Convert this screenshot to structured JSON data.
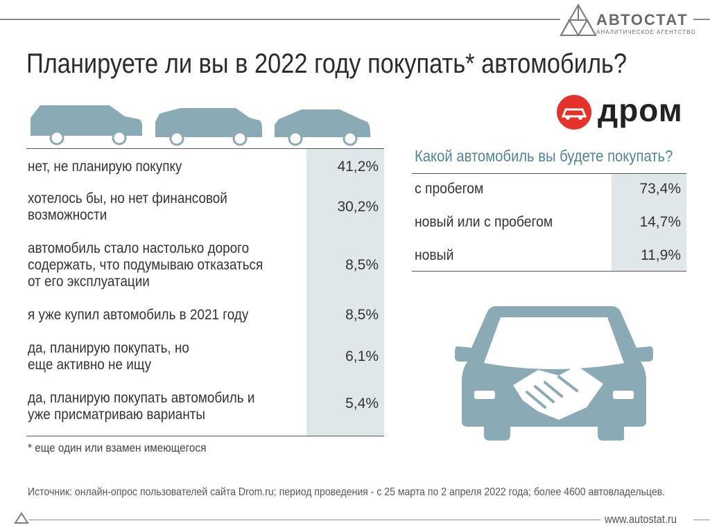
{
  "brand": {
    "name": "АВТОСТАТ",
    "subtitle": "АНАЛИТИЧЕСКОЕ АГЕНТСТВО"
  },
  "title": "Планируете ли вы в 2022 году покупать* автомобиль?",
  "partner": {
    "name": "дром"
  },
  "colors": {
    "accent": "#4f8599",
    "icon": "#8aaab5",
    "shade": "#dfe7ea",
    "partner_red": "#e4322b"
  },
  "chart_data": [
    {
      "type": "table",
      "title": "Планируете ли вы в 2022 году покупать* автомобиль?",
      "rows": [
        {
          "label": "нет, не планирую покупку",
          "value": "41,2%"
        },
        {
          "label": "хотелось бы, но нет финансовой возможности",
          "value": "30,2%"
        },
        {
          "label": "автомобиль стало настолько дорого содержать, что подумываю отказаться от его эксплуатации",
          "value": "8,5%"
        },
        {
          "label": "я уже купил автомобиль в 2021 году",
          "value": "8,5%"
        },
        {
          "label": "да, планирую покупать, но еще активно не ищу",
          "value": "6,1%"
        },
        {
          "label": "да, планирую покупать автомобиль и уже присматриваю варианты",
          "value": "5,4%"
        }
      ]
    },
    {
      "type": "table",
      "title": "Какой автомобиль вы будете покупать?",
      "rows": [
        {
          "label": "с пробегом",
          "value": "73,4%"
        },
        {
          "label": "новый или с пробегом",
          "value": "14,7%"
        },
        {
          "label": "новый",
          "value": "11,9%"
        }
      ]
    }
  ],
  "footnote": "* еще один или взамен имеющегося",
  "source": "Источник: онлайн-опрос пользователей сайта Drom.ru; период проведения - с 25 марта по 2 апреля 2022 года; более 4600 автовладельцев.",
  "website": "www.autostat.ru"
}
